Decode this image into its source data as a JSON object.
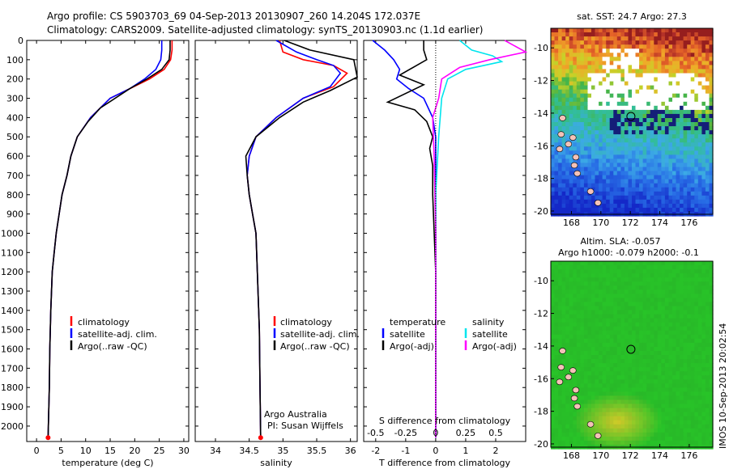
{
  "figure": {
    "title_line1": "Argo profile: CS 5903703_69 04-Sep-2013 20130907_260 14.204S 172.037E",
    "title_line2": "Climatology: CARS2009. Satellite-adjusted climatology: synTS_20130903.nc (1.1d earlier)",
    "footer_stamp": "IMOS 10-Sep-2013 20:02:54"
  },
  "colors": {
    "climatology": "#ff0000",
    "satellite": "#0000ff",
    "argo": "#000000",
    "salinity_satellite": "#00e5ee",
    "salinity_argo": "#ff00ff"
  },
  "chart_data": [
    {
      "id": "temperature",
      "type": "line",
      "xlabel": "temperature (deg C)",
      "ylabel": "",
      "xlim": [
        -2,
        31
      ],
      "ylim": [
        2080,
        0
      ],
      "xticks": [
        "0",
        "5",
        "10",
        "15",
        "20",
        "25",
        "30"
      ],
      "yticks": [
        "0",
        "100",
        "200",
        "300",
        "400",
        "500",
        "600",
        "700",
        "800",
        "900",
        "1000",
        "1100",
        "1200",
        "1300",
        "1400",
        "1500",
        "1600",
        "1700",
        "1800",
        "1900",
        "2000"
      ],
      "legend": [
        "climatology",
        "satellite-adj. clim.",
        "Argo(..raw -QC)"
      ],
      "series": [
        {
          "name": "climatology",
          "color": "#ff0000",
          "x": [
            27.6,
            27.6,
            27.3,
            26.0,
            23.0,
            19.0,
            15.0,
            11.0,
            8.3,
            7.0,
            6.2,
            5.2,
            4.6,
            4.0,
            3.6,
            3.2,
            2.9,
            2.7,
            2.6,
            2.4,
            2.35
          ],
          "y": [
            0,
            50,
            100,
            150,
            200,
            250,
            300,
            400,
            500,
            600,
            700,
            800,
            900,
            1000,
            1100,
            1200,
            1400,
            1600,
            1800,
            2000,
            2060
          ]
        },
        {
          "name": "satellite-adj. clim.",
          "color": "#0000ff",
          "x": [
            25.5,
            25.5,
            25.3,
            24.3,
            22.0,
            19.0,
            15.0,
            11.0,
            8.3,
            7.0,
            6.2,
            5.2,
            4.6,
            4.0,
            3.6,
            3.2,
            2.9,
            2.7,
            2.6,
            2.4,
            2.35
          ],
          "y": [
            0,
            50,
            100,
            150,
            200,
            250,
            300,
            400,
            500,
            600,
            700,
            800,
            900,
            1000,
            1100,
            1200,
            1400,
            1600,
            1800,
            2000,
            2060
          ]
        },
        {
          "name": "Argo(..raw -QC)",
          "color": "#000000",
          "x": [
            27.2,
            27.2,
            27.0,
            25.5,
            22.5,
            19.0,
            13.0,
            10.5,
            8.3,
            7.0,
            6.2,
            5.2,
            4.6,
            4.0,
            3.6,
            3.2,
            2.9,
            2.7,
            2.6,
            2.4,
            2.35
          ],
          "y": [
            0,
            50,
            100,
            150,
            200,
            250,
            350,
            420,
            500,
            600,
            700,
            800,
            900,
            1000,
            1100,
            1200,
            1400,
            1600,
            1800,
            2000,
            2060
          ]
        }
      ]
    },
    {
      "id": "salinity",
      "type": "line",
      "xlabel": "salinity",
      "ylabel": "",
      "xlim": [
        33.7,
        36.1
      ],
      "ylim": [
        2080,
        0
      ],
      "xticks": [
        "34",
        "34.5",
        "35",
        "35.5",
        "36"
      ],
      "legend": [
        "climatology",
        "satellite-adj. clim.",
        "Argo(..raw -QC)"
      ],
      "annotation": [
        "Argo Australia",
        "PI: Susan Wijffels"
      ],
      "series": [
        {
          "name": "climatology",
          "color": "#ff0000",
          "x": [
            34.95,
            35.0,
            35.3,
            35.75,
            35.95,
            35.75,
            35.3,
            34.9,
            34.6,
            34.5,
            34.47,
            34.5,
            34.55,
            34.6,
            34.62,
            34.65,
            34.66,
            34.67
          ],
          "y": [
            0,
            60,
            100,
            130,
            170,
            240,
            300,
            400,
            500,
            600,
            700,
            800,
            900,
            1000,
            1200,
            1500,
            1800,
            2060
          ]
        },
        {
          "name": "satellite-adj. clim.",
          "color": "#0000ff",
          "x": [
            34.9,
            35.2,
            35.5,
            35.75,
            35.85,
            35.7,
            35.3,
            34.9,
            34.6,
            34.5,
            34.47,
            34.5,
            34.55,
            34.6,
            34.62,
            34.65,
            34.66,
            34.67
          ],
          "y": [
            0,
            60,
            100,
            130,
            170,
            240,
            300,
            400,
            500,
            600,
            700,
            800,
            900,
            1000,
            1200,
            1500,
            1800,
            2060
          ]
        },
        {
          "name": "Argo(..raw -QC)",
          "color": "#000000",
          "x": [
            35.02,
            35.4,
            36.05,
            36.1,
            35.7,
            35.3,
            34.95,
            34.6,
            34.45,
            34.47,
            34.5,
            34.55,
            34.6,
            34.62,
            34.65,
            34.66,
            34.67
          ],
          "y": [
            0,
            50,
            100,
            190,
            260,
            320,
            400,
            500,
            600,
            700,
            800,
            900,
            1000,
            1200,
            1500,
            1800,
            2060
          ]
        }
      ]
    },
    {
      "id": "difference",
      "type": "line",
      "xlabel": "T difference from climatology",
      "xlabel_top": "S difference from climatology",
      "xlim": [
        -2.4,
        3.0
      ],
      "ylim": [
        2080,
        0
      ],
      "xticks": [
        "-2",
        "-1",
        "0",
        "1",
        "2"
      ],
      "xticks_S": [
        "-0.5",
        "-0.25",
        "0",
        "0.25",
        "0.5"
      ],
      "legend_headers": [
        "temperature",
        "salinity"
      ],
      "legend": [
        "satellite",
        "Argo(-adj)",
        "satellite",
        "Argo(-adj)"
      ],
      "series": [
        {
          "name": "satellite",
          "color": "#0000ff",
          "x": [
            -2.1,
            -1.7,
            -1.4,
            -1.2,
            -1.3,
            -0.9,
            -0.4,
            -0.1,
            0.0,
            0.0,
            0.0
          ],
          "y": [
            0,
            50,
            100,
            150,
            200,
            250,
            300,
            400,
            500,
            1000,
            2060
          ]
        },
        {
          "name": "Argo(-adj)",
          "color": "#000000",
          "x": [
            -0.4,
            -0.4,
            -0.3,
            -1.2,
            -0.4,
            -1.6,
            -0.7,
            -0.3,
            -0.1,
            -0.2,
            -0.1,
            -0.1,
            0.0,
            0.0
          ],
          "y": [
            0,
            50,
            100,
            180,
            230,
            320,
            360,
            420,
            500,
            560,
            650,
            800,
            1200,
            2060
          ]
        },
        {
          "name": "satellite",
          "color": "#00e5ee",
          "x": [
            0.8,
            1.2,
            1.9,
            2.2,
            1.0,
            0.4,
            0.2,
            0.1,
            0.0,
            0.0
          ],
          "y": [
            0,
            50,
            80,
            110,
            150,
            200,
            300,
            500,
            800,
            2060
          ]
        },
        {
          "name": "Argo(-adj)",
          "color": "#ff00ff",
          "x": [
            2.3,
            3.0,
            1.8,
            0.8,
            0.2,
            0.1,
            -0.1,
            -0.05,
            0.0,
            0.0
          ],
          "y": [
            0,
            60,
            100,
            140,
            200,
            300,
            400,
            600,
            1000,
            2060
          ]
        }
      ]
    },
    {
      "id": "sst_map",
      "type": "heatmap",
      "title": "sat. SST: 24.7 Argo: 27.3",
      "xticks": [
        "168",
        "170",
        "172",
        "174",
        "176"
      ],
      "yticks": [
        "-10",
        "-12",
        "-14",
        "-16",
        "-18",
        "-20"
      ],
      "xlim": [
        166.6,
        177.6
      ],
      "ylim": [
        -20.2,
        -8.8
      ],
      "argo_position": [
        172.04,
        -14.2
      ]
    },
    {
      "id": "sla_map",
      "type": "heatmap",
      "title_line1": "Altim. SLA: -0.057",
      "title_line2": "Argo h1000: -0.079 h2000: -0.1",
      "xticks": [
        "168",
        "170",
        "172",
        "174",
        "176"
      ],
      "yticks": [
        "-10",
        "-12",
        "-14",
        "-16",
        "-18",
        "-20"
      ],
      "xlim": [
        166.6,
        177.6
      ],
      "ylim": [
        -20.2,
        -8.8
      ],
      "argo_position": [
        172.04,
        -14.2
      ]
    }
  ]
}
